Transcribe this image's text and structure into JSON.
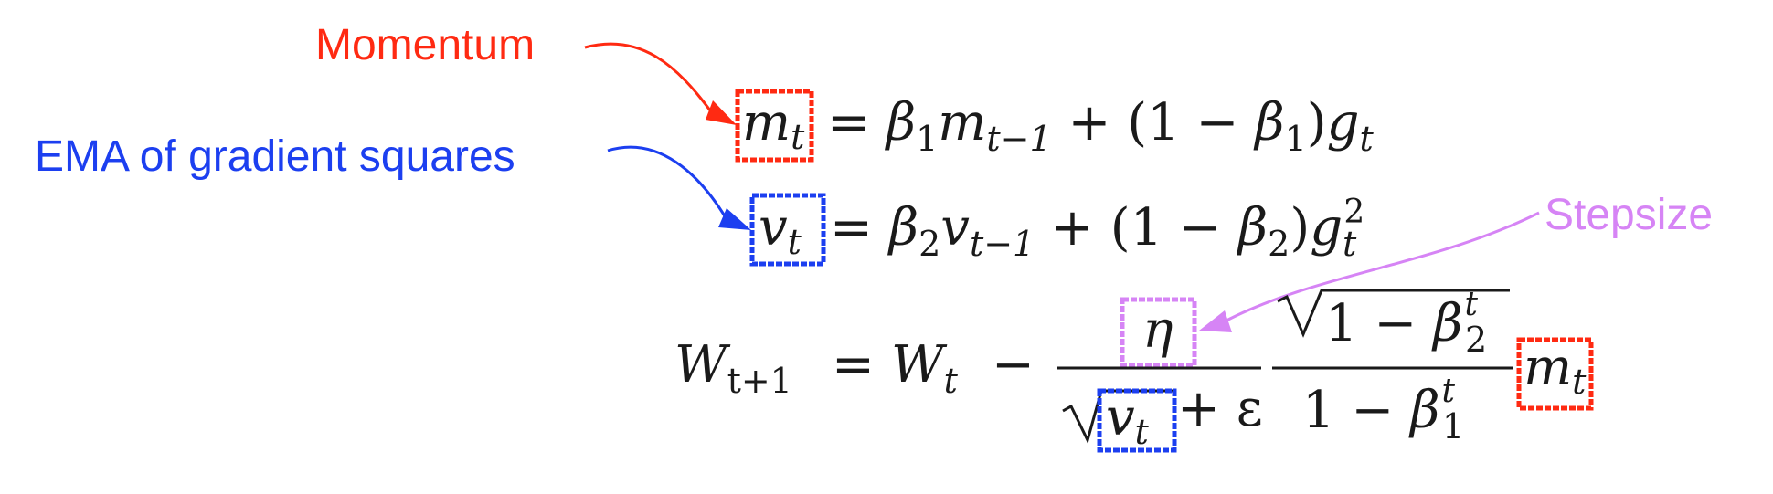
{
  "annotations": {
    "momentum": {
      "label": "Momentum",
      "color": "#ff2a12"
    },
    "ema": {
      "label": "EMA of gradient squares",
      "color": "#1c3ff0"
    },
    "stepsize": {
      "label": "Stepsize",
      "color": "#d684f5"
    }
  },
  "equations": {
    "m_update": {
      "lhs": {
        "symbol": "m",
        "subscript": "t"
      },
      "rhs": [
        {
          "text": "= ",
          "style": "normal"
        },
        {
          "text": "β",
          "style": "italic"
        },
        {
          "text": "1",
          "style": "sub"
        },
        {
          "text": "m",
          "style": "italic"
        },
        {
          "text": "t−1",
          "style": "sub-italic"
        },
        {
          "text": " + (1 − ",
          "style": "normal"
        },
        {
          "text": "β",
          "style": "italic"
        },
        {
          "text": "1",
          "style": "sub"
        },
        {
          "text": ")",
          "style": "normal"
        },
        {
          "text": "g",
          "style": "italic"
        },
        {
          "text": "t",
          "style": "sub-italic"
        }
      ]
    },
    "v_update": {
      "lhs": {
        "symbol": "v",
        "subscript": "t"
      },
      "rhs": [
        {
          "text": "= ",
          "style": "normal"
        },
        {
          "text": "β",
          "style": "italic"
        },
        {
          "text": "2",
          "style": "sub"
        },
        {
          "text": "v",
          "style": "italic"
        },
        {
          "text": "t−1",
          "style": "sub-italic"
        },
        {
          "text": " + (1 − ",
          "style": "normal"
        },
        {
          "text": "β",
          "style": "italic"
        },
        {
          "text": "2",
          "style": "sub"
        },
        {
          "text": ")",
          "style": "normal"
        },
        {
          "text": "g",
          "style": "italic"
        },
        {
          "text": "t",
          "style": "sub-italic"
        },
        {
          "text": "2",
          "style": "sup"
        }
      ]
    },
    "w_update": {
      "lhs": {
        "symbol": "W",
        "subscript": "t+1"
      },
      "equals": "=",
      "w_t": {
        "symbol": "W",
        "subscript": "t"
      },
      "minus": "−",
      "eta": "η",
      "epsilon_part": "+ ε",
      "v_symbol": "v",
      "v_subscript": "t",
      "correction_num": {
        "text": "1 − ",
        "beta": "β",
        "sub": "2",
        "sup": "t"
      },
      "correction_den": {
        "text": "1 − ",
        "beta": "β",
        "sub": "1",
        "sup": "t"
      },
      "m_symbol": "m",
      "m_subscript": "t"
    }
  }
}
